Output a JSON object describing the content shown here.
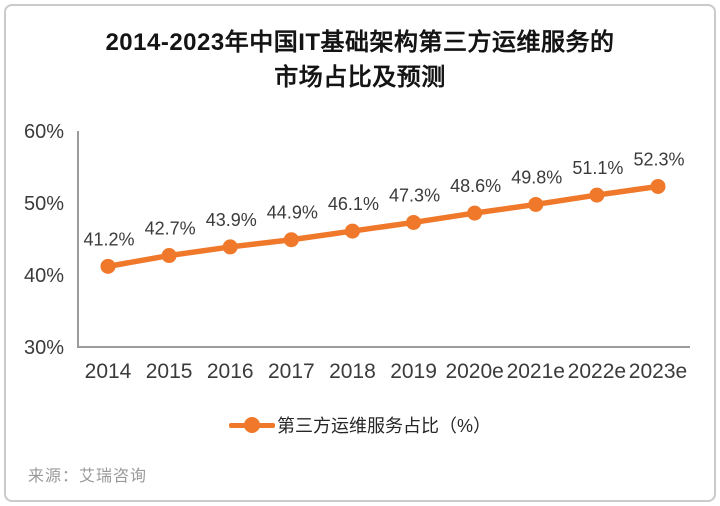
{
  "title": {
    "line1": "2014-2023年中国IT基础架构第三方运维服务的",
    "line2": "市场占比及预测"
  },
  "source_text": "来源：艾瑞咨询",
  "colors": {
    "series": "#f0782a",
    "axis_line": "#9c9c9c",
    "tick_label": "#3b3b3b",
    "data_label": "#3b3b3b",
    "title_text": "#141414",
    "legend_text": "#262626",
    "source_text": "#9a9a9a",
    "card_border": "#cacaca"
  },
  "chart_data": {
    "type": "line",
    "title": "2014-2023年中国IT基础架构第三方运维服务的市场占比及预测",
    "categories": [
      "2014",
      "2015",
      "2016",
      "2017",
      "2018",
      "2019",
      "2020e",
      "2021e",
      "2022e",
      "2023e"
    ],
    "series": [
      {
        "name": "第三方运维服务占比（%）",
        "values": [
          41.2,
          42.7,
          43.9,
          44.9,
          46.1,
          47.3,
          48.6,
          49.8,
          51.1,
          52.3
        ]
      }
    ],
    "data_labels": [
      "41.2%",
      "42.7%",
      "43.9%",
      "44.9%",
      "46.1%",
      "47.3%",
      "48.6%",
      "49.8%",
      "51.1%",
      "52.3%"
    ],
    "xlabel": "",
    "ylabel": "",
    "ylim": [
      30,
      60
    ],
    "yticks": [
      60,
      50,
      40,
      30
    ],
    "ytick_labels": [
      "60%",
      "50%",
      "40%",
      "30%"
    ],
    "grid": false,
    "legend_position": "bottom",
    "source": "来源：艾瑞咨询"
  }
}
